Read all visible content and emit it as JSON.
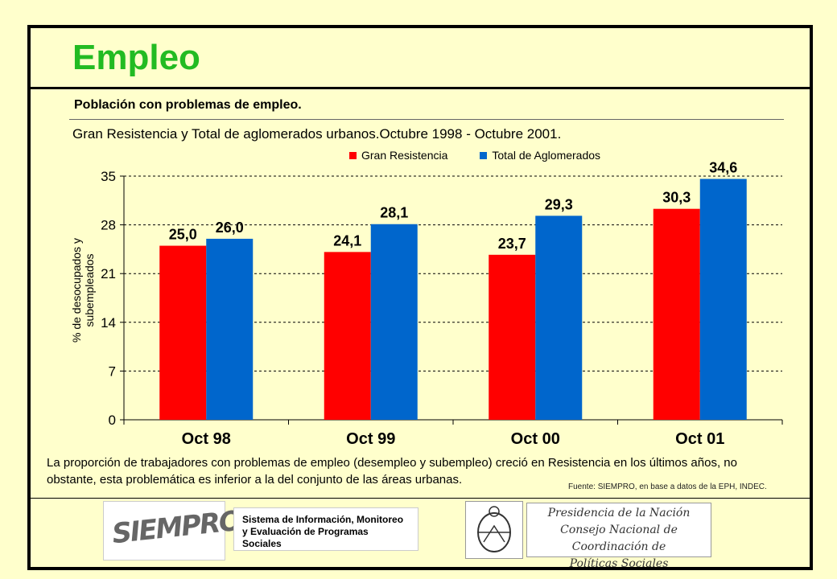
{
  "page": {
    "title": "Empleo",
    "subtitle": "Población con problemas de empleo.",
    "description": "La proporción de trabajadores con problemas de empleo (desempleo y subempleo) creció en Resistencia en los últimos años, no obstante, esta problemática es inferior a la del conjunto de las áreas urbanas.",
    "source": "Fuente: SIEMPRO, en base a datos de la EPH, INDEC."
  },
  "logos": {
    "siempro": "SIEMPRO",
    "sistema_line1": "Sistema de Información, Monitoreo",
    "sistema_line2": "y Evaluación de Programas Sociales",
    "presidencia_line1": "Presidencia de la Nación",
    "presidencia_line2": "Consejo Nacional de Coordinación de",
    "presidencia_line3": "Políticas Sociales"
  },
  "chart_data": {
    "type": "bar",
    "title": "Gran Resistencia y Total de aglomerados urbanos.Octubre 1998 - Octubre 2001.",
    "ylabel_line1": "% de desocupados y",
    "ylabel_line2": "subempleados",
    "categories": [
      "Oct 98",
      "Oct 99",
      "Oct 00",
      "Oct 01"
    ],
    "series": [
      {
        "name": "Gran Resistencia",
        "color": "#ff0000",
        "values": [
          25.0,
          24.1,
          23.7,
          30.3
        ],
        "labels": [
          "25,0",
          "24,1",
          "23,7",
          "30,3"
        ]
      },
      {
        "name": "Total de Aglomerados",
        "color": "#0066cc",
        "values": [
          26.0,
          28.1,
          29.3,
          34.6
        ],
        "labels": [
          "26,0",
          "28,1",
          "29,3",
          "34,6"
        ]
      }
    ],
    "ylim": [
      0,
      35
    ],
    "yticks": [
      0,
      7,
      14,
      21,
      28,
      35
    ],
    "grid": true,
    "legend": "top-center"
  }
}
